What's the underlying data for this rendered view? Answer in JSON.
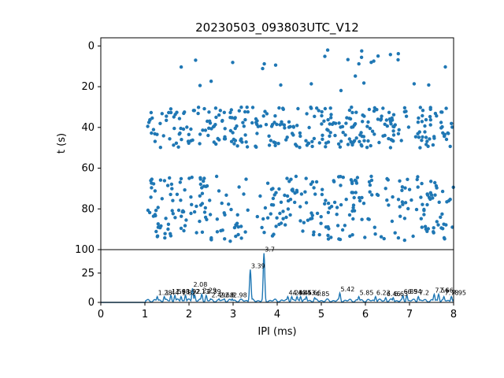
{
  "chart_data": [
    {
      "type": "scatter",
      "title": "20230503_093803UTC_V12",
      "ylabel": "t (s)",
      "xlim": [
        0,
        8
      ],
      "ylim": [
        100,
        -4
      ],
      "y_inverted": true,
      "yticks": [
        "0",
        "20",
        "40",
        "60",
        "80",
        "100"
      ],
      "color": "#1f77b4",
      "point_groups": [
        {
          "name": "",
          "x_range": [
            1.05,
            8.0
          ],
          "t_range": [
            0,
            22
          ],
          "density": "sparse"
        },
        {
          "name": "",
          "x_range": [
            1.05,
            8.0
          ],
          "t_range": [
            30,
            50
          ],
          "density": "dense"
        },
        {
          "name": "",
          "x_range": [
            1.05,
            8.0
          ],
          "t_range": [
            64,
            96
          ],
          "density": "dense"
        }
      ]
    },
    {
      "type": "line",
      "xlabel": "IPI (ms)",
      "xlim": [
        0,
        8
      ],
      "ylim": [
        0,
        45
      ],
      "xticks": [
        "0",
        "1",
        "2",
        "3",
        "4",
        "5",
        "6",
        "7",
        "8"
      ],
      "yticks": [
        "0",
        "25"
      ],
      "color": "#1f77b4",
      "peaks": [
        {
          "x": 1.28,
          "y": 5,
          "label": "1.28"
        },
        {
          "x": 1.44,
          "y": 5,
          "label": "1.44"
        },
        {
          "x": 1.59,
          "y": 6,
          "label": "1.59"
        },
        {
          "x": 1.68,
          "y": 6,
          "label": "1.68"
        },
        {
          "x": 1.82,
          "y": 5,
          "label": "1.82"
        },
        {
          "x": 1.92,
          "y": 6,
          "label": "1.92"
        },
        {
          "x": 2.08,
          "y": 12,
          "label": "2.08"
        },
        {
          "x": 2.13,
          "y": 6,
          "label": "2.13"
        },
        {
          "x": 2.29,
          "y": 7,
          "label": "2.29"
        },
        {
          "x": 2.39,
          "y": 6,
          "label": "2.39"
        },
        {
          "x": 2.49,
          "y": 3,
          "label": "2.49"
        },
        {
          "x": 2.68,
          "y": 3,
          "label": "2.68"
        },
        {
          "x": 2.8,
          "y": 3,
          "label": "2.8"
        },
        {
          "x": 2.98,
          "y": 3,
          "label": "2.98"
        },
        {
          "x": 3.39,
          "y": 28,
          "label": "3.39"
        },
        {
          "x": 3.7,
          "y": 42,
          "label": "3.7"
        },
        {
          "x": 4.24,
          "y": 5,
          "label": "4.24"
        },
        {
          "x": 4.33,
          "y": 5,
          "label": "4.33"
        },
        {
          "x": 4.45,
          "y": 5,
          "label": "4.45"
        },
        {
          "x": 4.53,
          "y": 5,
          "label": "4.53"
        },
        {
          "x": 4.66,
          "y": 5,
          "label": "4.66"
        },
        {
          "x": 4.85,
          "y": 4,
          "label": "4.85"
        },
        {
          "x": 5.42,
          "y": 8,
          "label": "5.42"
        },
        {
          "x": 5.85,
          "y": 5,
          "label": "5.85"
        },
        {
          "x": 6.23,
          "y": 5,
          "label": "6.23"
        },
        {
          "x": 6.46,
          "y": 4,
          "label": "6.46"
        },
        {
          "x": 6.63,
          "y": 4,
          "label": "6.63"
        },
        {
          "x": 6.85,
          "y": 6,
          "label": "6.85"
        },
        {
          "x": 6.94,
          "y": 6,
          "label": "6.94"
        },
        {
          "x": 7.2,
          "y": 5,
          "label": "7.2"
        },
        {
          "x": 7.56,
          "y": 7,
          "label": "7.56"
        },
        {
          "x": 7.66,
          "y": 7,
          "label": "7.66"
        },
        {
          "x": 7.78,
          "y": 5,
          "label": "7.78"
        },
        {
          "x": 7.95,
          "y": 5,
          "label": "7.95"
        }
      ]
    }
  ]
}
